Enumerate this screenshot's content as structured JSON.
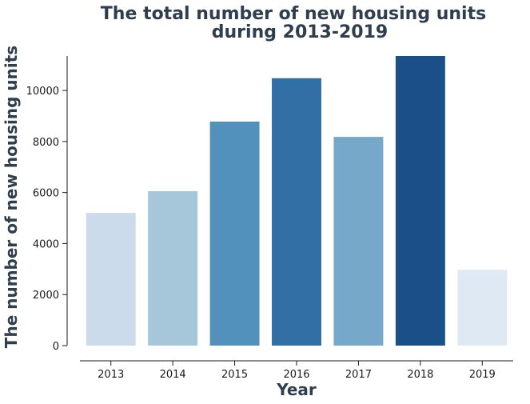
{
  "chart_data": {
    "type": "bar",
    "title_line1": "The total number of new housing units",
    "title_line2": "during 2013-2019",
    "xlabel": "Year",
    "ylabel": "The number of new housing units",
    "categories": [
      "2013",
      "2014",
      "2015",
      "2016",
      "2017",
      "2018",
      "2019"
    ],
    "values": [
      5200,
      6050,
      8780,
      10480,
      8180,
      11350,
      2970
    ],
    "colors": [
      "#cbdbec",
      "#a6c6da",
      "#5291bb",
      "#326fa5",
      "#76a8ca",
      "#1a4f88",
      "#dfe9f4"
    ],
    "yticks": [
      0,
      2000,
      4000,
      6000,
      8000,
      10000
    ],
    "ylim": [
      0,
      11350
    ],
    "grid": false,
    "legend": "none"
  }
}
